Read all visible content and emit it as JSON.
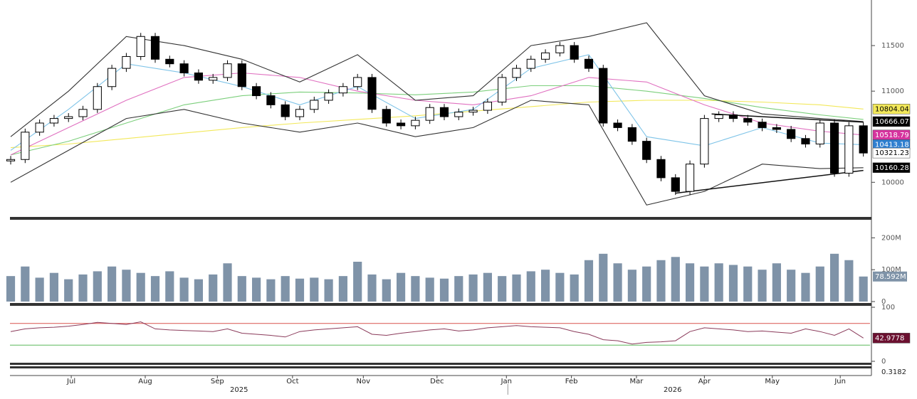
{
  "chart_data": [
    {
      "type": "candlestick",
      "name": "Price",
      "xlim": [
        -0.74,
        59.46
      ],
      "ylim": [
        9620,
        12000
      ],
      "yticks": [
        10000,
        11000,
        11500
      ],
      "x": [
        0,
        1,
        2,
        3,
        4,
        5,
        6,
        7,
        8,
        9,
        10,
        11,
        12,
        13,
        14,
        15,
        16,
        17,
        18,
        19,
        20,
        21,
        22,
        23,
        24,
        25,
        26,
        27,
        28,
        29,
        30,
        31,
        32,
        33,
        34,
        35,
        36,
        37,
        38,
        39,
        40,
        41,
        42,
        43,
        44,
        45,
        46,
        47,
        48,
        49,
        50,
        51,
        52,
        53,
        54,
        55,
        56,
        57,
        58,
        59
      ],
      "values": [
        10250,
        10550,
        10650,
        10700,
        10720,
        10800,
        11050,
        11250,
        11380,
        11600,
        11350,
        11300,
        11200,
        11120,
        11150,
        11300,
        11050,
        10950,
        10850,
        10720,
        10800,
        10900,
        10980,
        11050,
        11150,
        10800,
        10650,
        10620,
        10680,
        10820,
        10720,
        10770,
        10790,
        10880,
        11150,
        11250,
        11350,
        11420,
        11500,
        11350,
        11250,
        10650,
        10600,
        10450,
        10250,
        10050,
        9900,
        10200,
        10700,
        10740,
        10700,
        10660,
        10600,
        10580,
        10480,
        10420,
        10650,
        10100,
        10620,
        10321.23
      ],
      "tag_color": "#ffffff",
      "series": [
        {
          "x": [
            0,
            4,
            8,
            12,
            16,
            20,
            24,
            28,
            32,
            36,
            40,
            44,
            48,
            52,
            56,
            59
          ],
          "color": "#f2e85a",
          "tag_color": "#f2e85a",
          "values": [
            10380,
            10420,
            10480,
            10540,
            10600,
            10650,
            10690,
            10730,
            10780,
            10830,
            10880,
            10900,
            10900,
            10880,
            10850,
            10804.04
          ]
        },
        {
          "x": [
            0,
            4,
            8,
            12,
            16,
            20,
            24,
            28,
            32,
            36,
            40,
            44,
            48,
            52,
            56,
            59
          ],
          "color": "#7ccf7c",
          "values": [
            10300,
            10450,
            10650,
            10850,
            10950,
            10990,
            10980,
            10960,
            10990,
            11060,
            11060,
            11000,
            10920,
            10820,
            10740,
            10690
          ]
        },
        {
          "x": [
            0,
            4,
            8,
            12,
            16,
            20,
            24,
            28,
            32,
            36,
            40,
            44,
            48,
            52,
            56,
            59
          ],
          "color": "#e070c0",
          "tag_color": "#d6339e",
          "values": [
            10300,
            10600,
            10900,
            11150,
            11200,
            11150,
            11000,
            10900,
            10850,
            10950,
            11150,
            11100,
            10850,
            10650,
            10560,
            10518.79
          ]
        },
        {
          "x": [
            0,
            4,
            8,
            12,
            16,
            20,
            24,
            28,
            32,
            36,
            40,
            44,
            48,
            52,
            56,
            59
          ],
          "color": "#7fc4e8",
          "tag_color": "#2f7fd0",
          "values": [
            10350,
            10800,
            11300,
            11200,
            11050,
            10850,
            11050,
            10700,
            10800,
            11250,
            11400,
            10500,
            10400,
            10600,
            10430,
            10413.18
          ]
        },
        {
          "x": [
            0,
            4,
            8,
            12,
            16,
            20,
            24,
            28,
            32,
            36,
            40,
            44,
            48,
            52,
            56,
            59
          ],
          "color": "#333333",
          "tag_color": "#000000",
          "values": [
            10500,
            11000,
            11600,
            11500,
            11350,
            11100,
            11400,
            10900,
            10950,
            11500,
            11600,
            11750,
            10950,
            10750,
            10700,
            10666.07
          ]
        },
        {
          "x": [
            0,
            4,
            8,
            12,
            16,
            20,
            24,
            28,
            32,
            36,
            40,
            44,
            48,
            52,
            56,
            59
          ],
          "color": "#333333",
          "tag_color": "#000000",
          "values": [
            10000,
            10350,
            10700,
            10800,
            10650,
            10550,
            10650,
            10500,
            10600,
            10900,
            10850,
            9750,
            9900,
            10200,
            10150,
            10160.28
          ]
        }
      ],
      "trendlines": [
        {
          "x": [
            46,
            59
          ],
          "y": [
            9880,
            10130
          ]
        },
        {
          "x": [
            48.5,
            59
          ],
          "y": [
            10750,
            10660
          ]
        }
      ]
    },
    {
      "type": "bar",
      "name": "Volume",
      "xlim": [
        -0.74,
        59.46
      ],
      "ylim": [
        0,
        250
      ],
      "yticks": [
        {
          "value": 0,
          "label": "0"
        },
        {
          "value": 100,
          "label": "100M"
        },
        {
          "value": 200,
          "label": "200M"
        }
      ],
      "color": "#7f93a8",
      "values": [
        80,
        110,
        75,
        90,
        70,
        85,
        95,
        110,
        100,
        90,
        80,
        95,
        75,
        70,
        85,
        120,
        80,
        75,
        70,
        80,
        72,
        75,
        70,
        80,
        125,
        85,
        70,
        90,
        80,
        75,
        72,
        80,
        85,
        90,
        80,
        85,
        95,
        100,
        90,
        85,
        130,
        150,
        120,
        100,
        110,
        130,
        140,
        120,
        110,
        120,
        115,
        110,
        100,
        120,
        100,
        90,
        110,
        150,
        130,
        78.592
      ],
      "last_label": "78.592M"
    },
    {
      "type": "line",
      "name": "RSI",
      "xlim": [
        -0.74,
        59.46
      ],
      "ylim": [
        0,
        100
      ],
      "yticks": [
        0,
        100
      ],
      "levels": [
        {
          "value": 70,
          "color": "#d9534f"
        },
        {
          "value": 30,
          "color": "#5cb85c"
        }
      ],
      "color": "#8a3a5a",
      "tag_color": "#6b1030",
      "values": [
        55,
        60,
        62,
        63,
        65,
        68,
        72,
        70,
        68,
        73,
        60,
        58,
        57,
        56,
        55,
        60,
        52,
        50,
        48,
        45,
        55,
        58,
        60,
        62,
        64,
        50,
        48,
        52,
        55,
        58,
        60,
        56,
        58,
        62,
        64,
        66,
        64,
        63,
        62,
        55,
        50,
        40,
        38,
        32,
        35,
        36,
        38,
        55,
        62,
        60,
        58,
        55,
        56,
        54,
        52,
        60,
        55,
        48,
        60,
        42.9778
      ]
    }
  ],
  "x_axis": {
    "ticks": [
      {
        "value": 4.19,
        "label": "Jul"
      },
      {
        "value": 9.31,
        "label": "Aug"
      },
      {
        "value": 14.3,
        "label": "Sep"
      },
      {
        "value": 19.5,
        "label": "Oct"
      },
      {
        "value": 24.4,
        "label": "Nov"
      },
      {
        "value": 29.5,
        "label": "Dec"
      },
      {
        "value": 34.3,
        "label": "Jan"
      },
      {
        "value": 38.8,
        "label": "Feb"
      },
      {
        "value": 43.3,
        "label": "Mar"
      },
      {
        "value": 48.0,
        "label": "Apr"
      },
      {
        "value": 52.7,
        "label": "May"
      },
      {
        "value": 57.4,
        "label": "Jun"
      }
    ],
    "years": [
      {
        "value": 15.8,
        "label": "2025"
      },
      {
        "value": 45.8,
        "label": "2026"
      }
    ]
  },
  "bottom_panel": {
    "value_label": "0.3182"
  }
}
